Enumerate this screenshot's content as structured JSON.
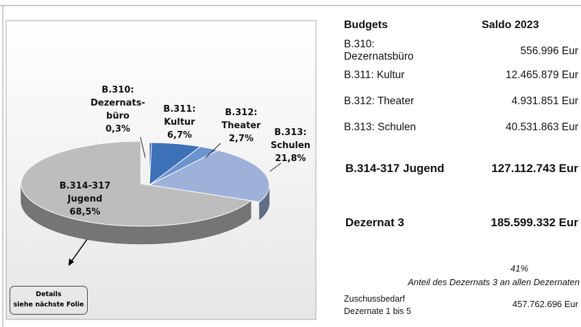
{
  "chart_data": {
    "type": "pie",
    "categories": [
      "B.310:\nDezernats-\nbüro",
      "B.311:\nKultur",
      "B.312:\nTheater",
      "B.313:\nSchulen",
      "B.314-317\nJugend"
    ],
    "values": [
      0.3,
      6.7,
      2.7,
      21.8,
      68.5
    ],
    "value_labels": [
      "0,3%",
      "6,7%",
      "2,7%",
      "21,8%",
      "68,5%"
    ],
    "colors": [
      "#2f5c9e",
      "#3d72b8",
      "#6d93cf",
      "#9db1d9",
      "#bdbdbd"
    ]
  },
  "table": {
    "header": [
      "Budgets",
      "Saldo 2023"
    ],
    "rows": [
      [
        "B.310:\nDezernatsbüro",
        "556.996 Eur"
      ],
      [
        "B.311: Kultur",
        "12.465.879 Eur"
      ],
      [
        "B.312: Theater",
        "4.931.851 Eur"
      ],
      [
        "B.313: Schulen",
        "40.531.863 Eur"
      ],
      [
        "B.314-317 Jugend",
        "127.112.743 Eur"
      ],
      [
        "Dezernat 3",
        "185.599.332 Eur"
      ]
    ]
  },
  "share": "41%",
  "share_label": "Anteil  des Dezernats 3 an allen Dezernaten",
  "total": {
    "label": "Zuschussbedarf\nDezernate 1 bis 5",
    "value": "457.762.696 Eur"
  },
  "note": "Details\nsiehe nächste Folie"
}
